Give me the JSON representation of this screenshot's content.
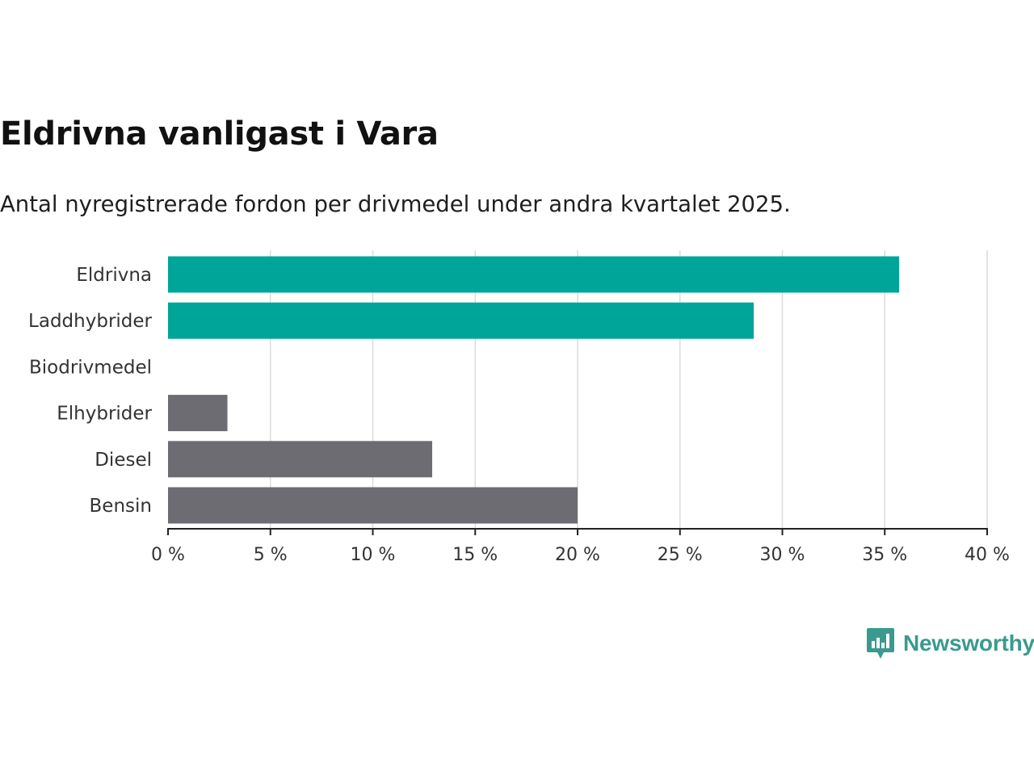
{
  "header": {
    "title": "Eldrivna vanligast i Vara",
    "subtitle": "Antal nyregistrerade fordon per drivmedel under andra kvartalet 2025."
  },
  "chart_data": {
    "type": "bar",
    "orientation": "horizontal",
    "categories": [
      "Eldrivna",
      "Laddhybrider",
      "Biodrivmedel",
      "Elhybrider",
      "Diesel",
      "Bensin"
    ],
    "values": [
      35.7,
      28.6,
      0,
      2.9,
      12.9,
      20.0
    ],
    "colors": [
      "#00a599",
      "#00a599",
      "#00a599",
      "#6e6c73",
      "#6e6c73",
      "#6e6c73"
    ],
    "xlim": [
      0,
      40
    ],
    "xticks": [
      0,
      5,
      10,
      15,
      20,
      25,
      30,
      35,
      40
    ],
    "tick_labels": [
      "0 %",
      "5 %",
      "10 %",
      "15 %",
      "20 %",
      "25 %",
      "30 %",
      "35 %",
      "40 %"
    ],
    "grid": true,
    "xlabel": "",
    "ylabel": ""
  },
  "branding": {
    "logo_text": "Newsworthy",
    "logo_icon": "newsworthy-chart-bubble-icon",
    "logo_color": "#3a9a8e"
  }
}
